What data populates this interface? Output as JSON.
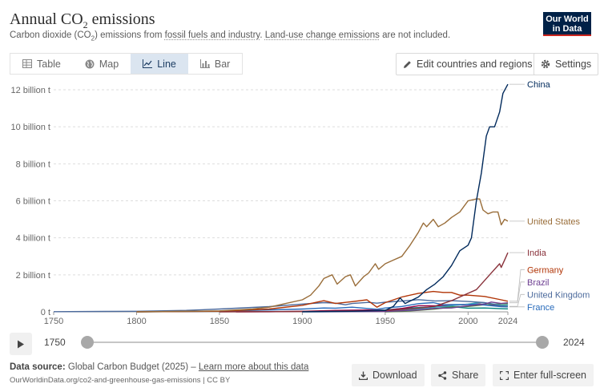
{
  "header": {
    "title_pre": "Annual CO",
    "title_sub": "2",
    "title_post": " emissions",
    "subtitle_pre": "Carbon dioxide (CO",
    "subtitle_sub": "2",
    "subtitle_mid": ") emissions from ",
    "subtitle_link1": "fossil fuels and industry",
    "subtitle_mid2": ". ",
    "subtitle_link2": "Land-use change emissions",
    "subtitle_post": " are not included."
  },
  "logo": {
    "line1": "Our World",
    "line2": "in Data",
    "bg": "#002147",
    "accent": "#ce261e"
  },
  "tabs": [
    {
      "label": "Table",
      "icon": "table-icon",
      "active": false
    },
    {
      "label": "Map",
      "icon": "globe-icon",
      "active": false
    },
    {
      "label": "Line",
      "icon": "line-chart-icon",
      "active": true
    },
    {
      "label": "Bar",
      "icon": "bar-chart-icon",
      "active": false
    }
  ],
  "controls": {
    "edit_label": "Edit countries and regions",
    "settings_label": "Settings"
  },
  "timeline": {
    "start": "1750",
    "end": "2024"
  },
  "footer": {
    "source_prefix": "Data source:",
    "source_text": "Global Carbon Budget (2025) –",
    "learn_more": "Learn more about this data",
    "url": "OurWorldinData.org/co2-and-greenhouse-gas-emissions | CC BY",
    "download_label": "Download",
    "share_label": "Share",
    "fullscreen_label": "Enter full-screen"
  },
  "chart_data": {
    "type": "line",
    "title": "Annual CO₂ emissions",
    "xlim": [
      1750,
      2024
    ],
    "ylim": [
      0,
      12500000000
    ],
    "x_ticks": [
      1750,
      1800,
      1850,
      1900,
      1950,
      2000,
      2024
    ],
    "y_ticks": [
      {
        "value": 0,
        "label": "0 t"
      },
      {
        "value": 2000000000,
        "label": "2 billion t"
      },
      {
        "value": 4000000000,
        "label": "4 billion t"
      },
      {
        "value": 6000000000,
        "label": "6 billion t"
      },
      {
        "value": 8000000000,
        "label": "8 billion t"
      },
      {
        "value": 10000000000,
        "label": "10 billion t"
      },
      {
        "value": 12000000000,
        "label": "12 billion t"
      }
    ],
    "grid": "horizontal dashed",
    "legend": "line-end labels, right",
    "series": [
      {
        "name": "China",
        "color": "#00295b",
        "points": [
          [
            1900,
            10000000
          ],
          [
            1930,
            30000000
          ],
          [
            1950,
            80000000
          ],
          [
            1955,
            300000000
          ],
          [
            1959,
            750000000
          ],
          [
            1962,
            450000000
          ],
          [
            1970,
            800000000
          ],
          [
            1975,
            1200000000
          ],
          [
            1980,
            1500000000
          ],
          [
            1985,
            1900000000
          ],
          [
            1990,
            2500000000
          ],
          [
            1995,
            3300000000
          ],
          [
            2000,
            3600000000
          ],
          [
            2002,
            4000000000
          ],
          [
            2005,
            6000000000
          ],
          [
            2008,
            7500000000
          ],
          [
            2011,
            9500000000
          ],
          [
            2013,
            10000000000
          ],
          [
            2016,
            10000000000
          ],
          [
            2019,
            10800000000
          ],
          [
            2021,
            11800000000
          ],
          [
            2024,
            12300000000
          ]
        ]
      },
      {
        "name": "United States",
        "color": "#996d39",
        "points": [
          [
            1800,
            0
          ],
          [
            1850,
            50000000
          ],
          [
            1870,
            150000000
          ],
          [
            1880,
            250000000
          ],
          [
            1890,
            450000000
          ],
          [
            1900,
            650000000
          ],
          [
            1905,
            900000000
          ],
          [
            1910,
            1400000000
          ],
          [
            1913,
            1800000000
          ],
          [
            1918,
            2000000000
          ],
          [
            1921,
            1500000000
          ],
          [
            1926,
            1900000000
          ],
          [
            1929,
            2000000000
          ],
          [
            1932,
            1400000000
          ],
          [
            1937,
            1900000000
          ],
          [
            1940,
            2100000000
          ],
          [
            1944,
            2600000000
          ],
          [
            1946,
            2300000000
          ],
          [
            1950,
            2600000000
          ],
          [
            1955,
            2800000000
          ],
          [
            1960,
            3000000000
          ],
          [
            1965,
            3600000000
          ],
          [
            1970,
            4300000000
          ],
          [
            1973,
            4800000000
          ],
          [
            1975,
            4600000000
          ],
          [
            1979,
            5000000000
          ],
          [
            1982,
            4600000000
          ],
          [
            1986,
            4800000000
          ],
          [
            1990,
            5100000000
          ],
          [
            1995,
            5400000000
          ],
          [
            2000,
            6000000000
          ],
          [
            2005,
            6100000000
          ],
          [
            2007,
            6100000000
          ],
          [
            2009,
            5500000000
          ],
          [
            2012,
            5300000000
          ],
          [
            2015,
            5400000000
          ],
          [
            2018,
            5400000000
          ],
          [
            2020,
            4700000000
          ],
          [
            2022,
            5000000000
          ],
          [
            2024,
            4900000000
          ]
        ]
      },
      {
        "name": "India",
        "color": "#883039",
        "points": [
          [
            1850,
            0
          ],
          [
            1900,
            20000000
          ],
          [
            1950,
            70000000
          ],
          [
            1970,
            200000000
          ],
          [
            1980,
            300000000
          ],
          [
            1990,
            600000000
          ],
          [
            2000,
            1000000000
          ],
          [
            2005,
            1200000000
          ],
          [
            2010,
            1700000000
          ],
          [
            2015,
            2200000000
          ],
          [
            2019,
            2600000000
          ],
          [
            2020,
            2400000000
          ],
          [
            2022,
            2800000000
          ],
          [
            2024,
            3200000000
          ]
        ]
      },
      {
        "name": "Germany",
        "color": "#b13507",
        "points": [
          [
            1800,
            0
          ],
          [
            1850,
            30000000
          ],
          [
            1880,
            150000000
          ],
          [
            1900,
            350000000
          ],
          [
            1913,
            600000000
          ],
          [
            1920,
            450000000
          ],
          [
            1930,
            550000000
          ],
          [
            1939,
            650000000
          ],
          [
            1945,
            250000000
          ],
          [
            1950,
            500000000
          ],
          [
            1960,
            800000000
          ],
          [
            1970,
            1000000000
          ],
          [
            1979,
            1100000000
          ],
          [
            1985,
            1050000000
          ],
          [
            1990,
            1050000000
          ],
          [
            1995,
            900000000
          ],
          [
            2000,
            900000000
          ],
          [
            2010,
            830000000
          ],
          [
            2020,
            650000000
          ],
          [
            2024,
            570000000
          ]
        ]
      },
      {
        "name": "Brazil",
        "color": "#6d3e91",
        "points": [
          [
            1900,
            0
          ],
          [
            1950,
            20000000
          ],
          [
            1970,
            100000000
          ],
          [
            1980,
            190000000
          ],
          [
            1990,
            210000000
          ],
          [
            2000,
            330000000
          ],
          [
            2010,
            420000000
          ],
          [
            2014,
            530000000
          ],
          [
            2020,
            450000000
          ],
          [
            2024,
            490000000
          ]
        ]
      },
      {
        "name": "United Kingdom",
        "color": "#4c6a9c",
        "points": [
          [
            1750,
            10000000
          ],
          [
            1800,
            30000000
          ],
          [
            1830,
            80000000
          ],
          [
            1850,
            150000000
          ],
          [
            1880,
            280000000
          ],
          [
            1900,
            420000000
          ],
          [
            1913,
            500000000
          ],
          [
            1920,
            470000000
          ],
          [
            1926,
            380000000
          ],
          [
            1930,
            450000000
          ],
          [
            1940,
            510000000
          ],
          [
            1945,
            470000000
          ],
          [
            1950,
            520000000
          ],
          [
            1960,
            580000000
          ],
          [
            1970,
            660000000
          ],
          [
            1980,
            590000000
          ],
          [
            1990,
            600000000
          ],
          [
            2000,
            560000000
          ],
          [
            2010,
            500000000
          ],
          [
            2020,
            320000000
          ],
          [
            2024,
            300000000
          ]
        ]
      },
      {
        "name": "France",
        "color": "#286bbb",
        "points": [
          [
            1800,
            0
          ],
          [
            1850,
            30000000
          ],
          [
            1900,
            150000000
          ],
          [
            1913,
            210000000
          ],
          [
            1920,
            200000000
          ],
          [
            1930,
            250000000
          ],
          [
            1945,
            140000000
          ],
          [
            1950,
            210000000
          ],
          [
            1960,
            290000000
          ],
          [
            1970,
            440000000
          ],
          [
            1979,
            500000000
          ],
          [
            1985,
            380000000
          ],
          [
            1990,
            390000000
          ],
          [
            2000,
            400000000
          ],
          [
            2005,
            410000000
          ],
          [
            2010,
            370000000
          ],
          [
            2020,
            280000000
          ],
          [
            2024,
            270000000
          ]
        ]
      },
      {
        "name": "",
        "color": "#38aaba",
        "points": [
          [
            1900,
            0
          ],
          [
            1930,
            10000000
          ],
          [
            1950,
            50000000
          ],
          [
            1960,
            80000000
          ],
          [
            1970,
            150000000
          ],
          [
            1980,
            250000000
          ],
          [
            1990,
            330000000
          ],
          [
            2000,
            420000000
          ],
          [
            2005,
            480000000
          ],
          [
            2008,
            500000000
          ],
          [
            2012,
            470000000
          ],
          [
            2020,
            360000000
          ],
          [
            2024,
            370000000
          ]
        ]
      },
      {
        "name": "",
        "color": "#578145",
        "points": [
          [
            1950,
            0
          ],
          [
            1960,
            20000000
          ],
          [
            1970,
            80000000
          ],
          [
            1980,
            150000000
          ],
          [
            1990,
            260000000
          ],
          [
            2000,
            290000000
          ],
          [
            2010,
            380000000
          ],
          [
            2020,
            430000000
          ],
          [
            2024,
            440000000
          ]
        ]
      },
      {
        "name": "",
        "color": "#970046",
        "points": [
          [
            1860,
            0
          ],
          [
            1880,
            5000000
          ],
          [
            1900,
            30000000
          ],
          [
            1920,
            80000000
          ],
          [
            1940,
            100000000
          ],
          [
            1950,
            80000000
          ],
          [
            1960,
            180000000
          ],
          [
            1970,
            330000000
          ],
          [
            1980,
            330000000
          ],
          [
            1990,
            350000000
          ],
          [
            2000,
            400000000
          ],
          [
            2007,
            420000000
          ],
          [
            2010,
            380000000
          ],
          [
            2015,
            370000000
          ],
          [
            2020,
            300000000
          ],
          [
            2024,
            280000000
          ]
        ]
      },
      {
        "name": "",
        "color": "#00847e",
        "points": [
          [
            1900,
            10000000
          ],
          [
            1920,
            30000000
          ],
          [
            1950,
            100000000
          ],
          [
            1960,
            180000000
          ],
          [
            1970,
            230000000
          ],
          [
            1980,
            270000000
          ],
          [
            1990,
            280000000
          ],
          [
            2000,
            200000000
          ],
          [
            2010,
            210000000
          ],
          [
            2020,
            170000000
          ],
          [
            2024,
            160000000
          ]
        ]
      }
    ],
    "end_labels": [
      {
        "name": "China",
        "color": "#00295b"
      },
      {
        "name": "United States",
        "color": "#996d39"
      },
      {
        "name": "India",
        "color": "#883039"
      },
      {
        "name": "Germany",
        "color": "#b13507"
      },
      {
        "name": "Brazil",
        "color": "#6d3e91"
      },
      {
        "name": "United Kingdom",
        "color": "#4c6a9c"
      },
      {
        "name": "France",
        "color": "#286bbb"
      }
    ]
  }
}
